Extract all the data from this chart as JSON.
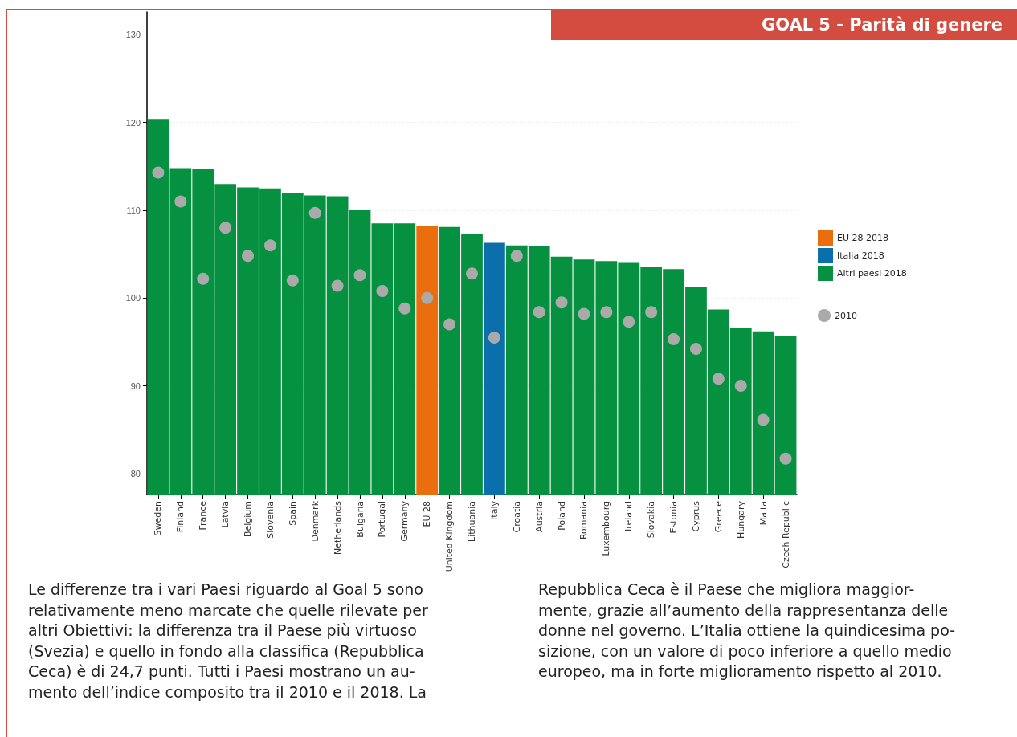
{
  "chart_data": {
    "type": "bar",
    "title": "GOAL 5 - Parità di genere",
    "categories": [
      "Sweden",
      "Finland",
      "France",
      "Latvia",
      "Belgium",
      "Slovenia",
      "Spain",
      "Denmark",
      "Netherlands",
      "Bulgaria",
      "Portugal",
      "Germany",
      "EU 28",
      "United Kingdom",
      "Lithuania",
      "Italy",
      "Croatia",
      "Austria",
      "Poland",
      "Romania",
      "Luxembourg",
      "Ireland",
      "Slovakia",
      "Estonia",
      "Cyprus",
      "Greece",
      "Hungary",
      "Malta",
      "Czech Republic"
    ],
    "stacked": true,
    "series": [
      {
        "name": "EU 28 2018",
        "color": "#eb6e0e",
        "values": [
          null,
          null,
          null,
          null,
          null,
          null,
          null,
          null,
          null,
          null,
          null,
          null,
          108.2,
          null,
          null,
          null,
          null,
          null,
          null,
          null,
          null,
          null,
          null,
          null,
          null,
          null,
          null,
          null,
          null
        ]
      },
      {
        "name": "Italia 2018",
        "color": "#0a6faa",
        "values": [
          null,
          null,
          null,
          null,
          null,
          null,
          null,
          null,
          null,
          null,
          null,
          null,
          null,
          null,
          null,
          106.3,
          null,
          null,
          null,
          null,
          null,
          null,
          null,
          null,
          null,
          null,
          null,
          null,
          null
        ]
      },
      {
        "name": "Altri paesi 2018",
        "color": "#05913f",
        "values": [
          120.4,
          114.8,
          114.7,
          113.0,
          112.6,
          112.5,
          112.0,
          111.7,
          111.6,
          110.0,
          108.5,
          108.5,
          null,
          108.1,
          107.3,
          null,
          106.0,
          105.9,
          104.7,
          104.4,
          104.2,
          104.1,
          103.6,
          103.3,
          101.3,
          98.7,
          96.6,
          96.2,
          95.7
        ]
      },
      {
        "name": "2010",
        "type": "scatter",
        "color": "#aaaaaa",
        "x": [
          "Sweden",
          "Finland",
          "France",
          "Latvia",
          "Belgium",
          "Slovenia",
          "Spain",
          "Denmark",
          "Netherlands",
          "Bulgaria",
          "Portugal",
          "Germany",
          "EU 28",
          "United Kingdom",
          "Lithuania",
          "Italy",
          "Croatia",
          "Austria",
          "Poland",
          "Romania",
          "Luxembourg",
          "Ireland",
          "Slovakia",
          "Estonia",
          "Cyprus",
          "Greece",
          "Hungary",
          "Malta",
          "Czech Republic"
        ],
        "values": [
          114.3,
          111.0,
          102.2,
          108.0,
          104.8,
          106.0,
          102.0,
          109.7,
          101.4,
          102.6,
          100.8,
          98.8,
          100.0,
          97.0,
          102.8,
          95.5,
          104.8,
          98.4,
          99.5,
          98.2,
          98.4,
          97.3,
          98.4,
          95.3,
          94.2,
          90.8,
          90.0,
          86.1,
          81.7
        ]
      }
    ],
    "ylim": [
      77.6,
      132.6
    ],
    "yticks": [
      80,
      90,
      100,
      110,
      120,
      130
    ],
    "grid": "y",
    "legend": "right",
    "marker": "circle",
    "annotations": [
      "Le differenze tra i vari Paesi riguardo al Goal 5 sono\nrelativamente meno marcate che quelle rilevate per\naltri Obiettivi: la differenza tra il Paese più virtuoso\n(Svezia) e quello in fondo alla classifica (Repubblica\nCeca) è di 24,7 punti. Tutti i Paesi mostrano un au-\nmento dell’indice composito tra il 2010 e il 2018. La",
      "Repubblica Ceca è il Paese che migliora maggior-\nmente, grazie all’aumento della rappresentanza delle\ndonne nel governo. L’Italia ottiene la quindicesima po-\nsizione, con un valore di poco inferiore a quello medio\neuropeo, ma in forte miglioramento rispetto al 2010."
    ]
  }
}
